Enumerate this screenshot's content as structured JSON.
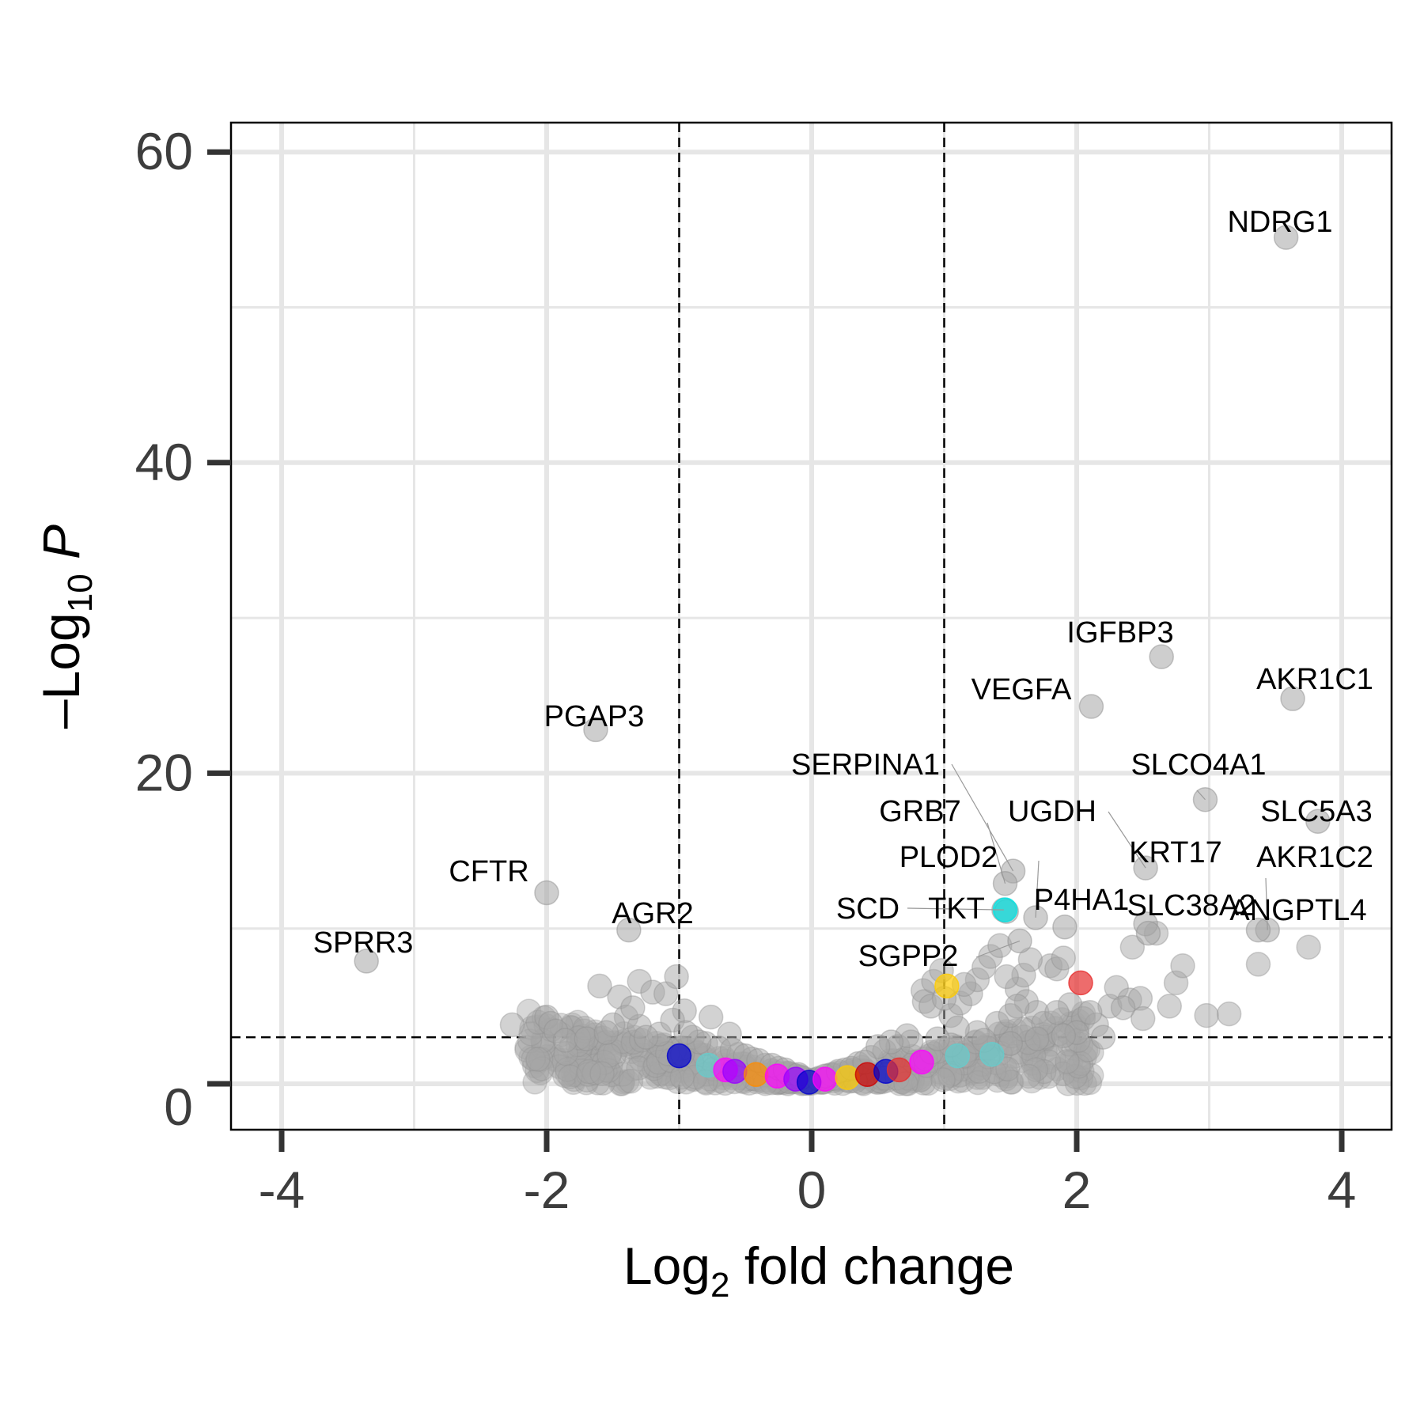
{
  "chart_data": {
    "type": "scatter",
    "title": "",
    "xlabel": {
      "prefix": "Log",
      "sub": "2",
      "suffix": " fold change"
    },
    "ylabel": {
      "prefix": "–Log",
      "sub": "10",
      "suffix": " ",
      "italic": "P"
    },
    "xlim": [
      -4.4,
      4.4
    ],
    "ylim": [
      -3,
      62
    ],
    "xticks": [
      -4,
      -2,
      0,
      2,
      4
    ],
    "xtick_labels": [
      "-4",
      "-2",
      "0",
      "2",
      "4"
    ],
    "yticks": [
      0,
      20,
      40,
      60
    ],
    "ytick_labels": [
      "0",
      "20",
      "40",
      "60"
    ],
    "grid": true,
    "legend": "none",
    "thresholds": {
      "log2fc": [
        -1,
        1
      ],
      "neglog10p": 3
    },
    "colors": {
      "background_point": "#a6a6a6",
      "grid": "#e6e6e6",
      "threshold_line": "#000000",
      "highlight": [
        "#0000cc",
        "#00e5e5",
        "#ff00ff",
        "#9900ff",
        "#ff8c00",
        "#ffcc00",
        "#cc0000",
        "#e62e2e",
        "#66cccc"
      ]
    },
    "labeled_points": [
      {
        "gene": "NDRG1",
        "x": 3.58,
        "y": 54.5
      },
      {
        "gene": "IGFBP3",
        "x": 2.64,
        "y": 27.5
      },
      {
        "gene": "AKR1C1",
        "x": 3.63,
        "y": 24.8
      },
      {
        "gene": "VEGFA",
        "x": 2.11,
        "y": 24.3
      },
      {
        "gene": "PGAP3",
        "x": -1.63,
        "y": 22.8
      },
      {
        "gene": "SLCO4A1",
        "x": 2.97,
        "y": 18.3
      },
      {
        "gene": "SLC5A3",
        "x": 3.82,
        "y": 16.9
      },
      {
        "gene": "SERPINA1",
        "x": 1.52,
        "y": 13.7
      },
      {
        "gene": "GRB7",
        "x": 1.46,
        "y": 12.9
      },
      {
        "gene": "UGDH",
        "x": 2.52,
        "y": 13.9
      },
      {
        "gene": "KRT17",
        "x": 2.52,
        "y": 10.3
      },
      {
        "gene": "PLOD2",
        "x": 1.69,
        "y": 10.7
      },
      {
        "gene": "P4HA1",
        "x": 1.91,
        "y": 10.1
      },
      {
        "gene": "SLC38A2",
        "x": 2.54,
        "y": 9.7
      },
      {
        "gene": "AKR1C2",
        "x": 3.44,
        "y": 9.9
      },
      {
        "gene": "ANGPTL4",
        "x": 3.37,
        "y": 9.9
      },
      {
        "gene": "CFTR",
        "x": -2.0,
        "y": 12.3
      },
      {
        "gene": "AGR2",
        "x": -1.38,
        "y": 9.9
      },
      {
        "gene": "SPRR3",
        "x": -3.36,
        "y": 7.9
      },
      {
        "gene": "SCD",
        "x": 1.45,
        "y": 11.2
      },
      {
        "gene": "TKT",
        "x": 1.47,
        "y": 11.1
      },
      {
        "gene": "SGPP2",
        "x": 1.57,
        "y": 9.2
      }
    ],
    "highlighted_points": [
      {
        "x": 1.46,
        "y": 11.2,
        "color": "#00e5e5"
      },
      {
        "x": 1.02,
        "y": 6.3,
        "color": "#ffcc00"
      },
      {
        "x": 2.03,
        "y": 6.5,
        "color": "#e62e2e"
      },
      {
        "x": -1.0,
        "y": 1.8,
        "color": "#0000cc"
      },
      {
        "x": -0.78,
        "y": 1.2,
        "color": "#66cccc"
      },
      {
        "x": -0.65,
        "y": 0.9,
        "color": "#ff00ff"
      },
      {
        "x": -0.58,
        "y": 0.8,
        "color": "#9900ff"
      },
      {
        "x": -0.42,
        "y": 0.6,
        "color": "#ff8c00"
      },
      {
        "x": -0.26,
        "y": 0.5,
        "color": "#ff00ff"
      },
      {
        "x": -0.12,
        "y": 0.3,
        "color": "#9900ff"
      },
      {
        "x": -0.02,
        "y": 0.1,
        "color": "#0000cc"
      },
      {
        "x": 0.1,
        "y": 0.3,
        "color": "#ff00ff"
      },
      {
        "x": 0.27,
        "y": 0.4,
        "color": "#ffcc00"
      },
      {
        "x": 0.42,
        "y": 0.6,
        "color": "#cc0000"
      },
      {
        "x": 0.56,
        "y": 0.8,
        "color": "#0000cc"
      },
      {
        "x": 0.66,
        "y": 0.9,
        "color": "#e62e2e"
      },
      {
        "x": 0.83,
        "y": 1.4,
        "color": "#ff00ff"
      },
      {
        "x": 1.1,
        "y": 1.8,
        "color": "#66cccc"
      },
      {
        "x": 1.36,
        "y": 1.9,
        "color": "#66cccc"
      }
    ],
    "background_points": [
      [
        -2.26,
        3.8
      ],
      [
        -2.0,
        4.3
      ],
      [
        -1.97,
        3.9
      ],
      [
        -1.93,
        3.4
      ],
      [
        -1.86,
        2.8
      ],
      [
        -1.6,
        6.3
      ],
      [
        -1.45,
        5.6
      ],
      [
        -1.3,
        6.6
      ],
      [
        -1.2,
        5.9
      ],
      [
        -1.1,
        5.8
      ],
      [
        -1.02,
        6.9
      ],
      [
        -0.96,
        4.7
      ],
      [
        -0.76,
        4.3
      ],
      [
        -0.62,
        3.2
      ],
      [
        -1.4,
        4.3
      ],
      [
        -1.5,
        3.8
      ],
      [
        -1.7,
        2.9
      ],
      [
        -1.55,
        3.3
      ],
      [
        -1.3,
        3.7
      ],
      [
        -1.15,
        3.2
      ],
      [
        -1.05,
        4.1
      ],
      [
        -0.9,
        3.0
      ],
      [
        -0.8,
        2.6
      ],
      [
        -0.7,
        2.3
      ],
      [
        -0.55,
        1.9
      ],
      [
        -0.45,
        1.6
      ],
      [
        -0.35,
        1.2
      ],
      [
        -0.25,
        1.0
      ],
      [
        -0.18,
        0.7
      ],
      [
        -0.08,
        0.4
      ],
      [
        0.05,
        0.3
      ],
      [
        0.15,
        0.6
      ],
      [
        0.25,
        0.9
      ],
      [
        0.35,
        1.3
      ],
      [
        0.45,
        1.7
      ],
      [
        0.55,
        2.1
      ],
      [
        0.65,
        2.4
      ],
      [
        0.75,
        2.7
      ],
      [
        0.84,
        6.0
      ],
      [
        0.85,
        5.3
      ],
      [
        0.92,
        6.6
      ],
      [
        0.98,
        7.3
      ],
      [
        1.05,
        4.4
      ],
      [
        1.12,
        5.2
      ],
      [
        1.2,
        5.8
      ],
      [
        1.25,
        6.7
      ],
      [
        1.3,
        7.5
      ],
      [
        1.35,
        8.2
      ],
      [
        1.42,
        8.9
      ],
      [
        1.55,
        6.1
      ],
      [
        1.62,
        5.3
      ],
      [
        1.7,
        4.6
      ],
      [
        1.8,
        7.6
      ],
      [
        1.85,
        7.4
      ],
      [
        1.9,
        8.1
      ],
      [
        1.95,
        5.1
      ],
      [
        2.05,
        4.2
      ],
      [
        2.15,
        3.8
      ],
      [
        2.25,
        5.0
      ],
      [
        2.3,
        6.2
      ],
      [
        2.4,
        5.4
      ],
      [
        2.42,
        8.8
      ],
      [
        2.48,
        5.5
      ],
      [
        2.6,
        9.7
      ],
      [
        2.7,
        5.0
      ],
      [
        2.75,
        6.5
      ],
      [
        2.8,
        7.6
      ],
      [
        2.98,
        4.4
      ],
      [
        3.15,
        4.5
      ],
      [
        3.37,
        7.7
      ],
      [
        3.75,
        8.8
      ],
      [
        1.6,
        3.5
      ],
      [
        1.4,
        3.9
      ],
      [
        1.25,
        3.3
      ],
      [
        1.1,
        3.6
      ],
      [
        1.5,
        4.4
      ],
      [
        1.75,
        3.9
      ],
      [
        2.0,
        3.3
      ],
      [
        2.2,
        3.0
      ],
      [
        1.3,
        2.8
      ],
      [
        1.5,
        2.6
      ],
      [
        1.7,
        2.9
      ],
      [
        1.9,
        3.1
      ],
      [
        1.05,
        2.5
      ],
      [
        0.95,
        2.9
      ],
      [
        0.72,
        3.1
      ],
      [
        0.6,
        2.7
      ],
      [
        0.5,
        2.4
      ],
      [
        -0.6,
        2.2
      ],
      [
        -0.5,
        1.8
      ],
      [
        -0.4,
        1.5
      ],
      [
        -0.3,
        1.2
      ],
      [
        -0.2,
        0.9
      ],
      [
        -0.1,
        0.6
      ],
      [
        0.1,
        0.5
      ],
      [
        0.2,
        0.8
      ],
      [
        0.3,
        1.0
      ],
      [
        0.4,
        1.4
      ],
      [
        -0.85,
        2.7
      ],
      [
        -0.95,
        3.3
      ],
      [
        -1.25,
        3.0
      ],
      [
        -1.35,
        4.9
      ],
      [
        1.6,
        7.0
      ],
      [
        1.65,
        8.0
      ],
      [
        1.47,
        6.9
      ],
      [
        1.15,
        6.4
      ],
      [
        0.9,
        5.0
      ],
      [
        1.0,
        5.5
      ],
      [
        2.1,
        4.6
      ],
      [
        2.35,
        4.9
      ],
      [
        2.5,
        4.2
      ],
      [
        1.85,
        4.6
      ],
      [
        1.55,
        5.0
      ]
    ]
  }
}
